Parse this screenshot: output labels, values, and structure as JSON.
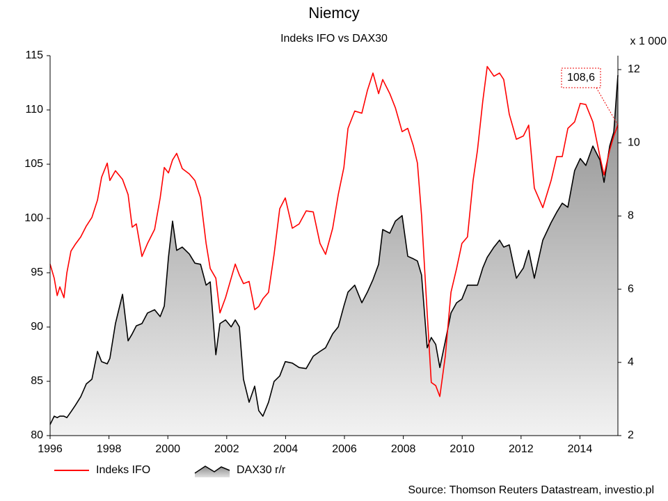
{
  "chart_data": {
    "type": "line",
    "title": "Niemcy",
    "subtitle": "Indeks IFO vs DAX30",
    "y2_unit": "x 1 000",
    "source": "Source: Thomson Reuters Datastream, investio.pl",
    "annotation": "108,6",
    "x": [
      1996.0,
      1996.14,
      1996.24,
      1996.33,
      1996.47,
      1996.57,
      1996.71,
      1996.85,
      1997.04,
      1997.23,
      1997.42,
      1997.61,
      1997.75,
      1997.94,
      1998.03,
      1998.22,
      1998.46,
      1998.65,
      1998.79,
      1998.93,
      1999.12,
      1999.31,
      1999.55,
      1999.74,
      1999.88,
      2000.02,
      2000.16,
      2000.3,
      2000.49,
      2000.73,
      2000.92,
      2001.11,
      2001.3,
      2001.44,
      2001.63,
      2001.77,
      2001.96,
      2002.15,
      2002.29,
      2002.43,
      2002.57,
      2002.76,
      2002.95,
      2003.09,
      2003.23,
      2003.42,
      2003.61,
      2003.8,
      2003.99,
      2004.23,
      2004.46,
      2004.7,
      2004.94,
      2005.17,
      2005.36,
      2005.6,
      2005.79,
      2005.98,
      2006.12,
      2006.35,
      2006.59,
      2006.78,
      2006.97,
      2007.16,
      2007.3,
      2007.54,
      2007.73,
      2007.96,
      2008.15,
      2008.34,
      2008.48,
      2008.62,
      2008.81,
      2008.95,
      2009.1,
      2009.24,
      2009.43,
      2009.62,
      2009.81,
      2009.99,
      2010.18,
      2010.37,
      2010.52,
      2010.7,
      2010.85,
      2011.08,
      2011.27,
      2011.41,
      2011.6,
      2011.84,
      2012.08,
      2012.26,
      2012.45,
      2012.74,
      2013.02,
      2013.21,
      2013.4,
      2013.59,
      2013.82,
      2014.01,
      2014.2,
      2014.44,
      2014.68,
      2014.82,
      2015.01,
      2015.15,
      2015.29
    ],
    "xlim": [
      1996,
      2015.29
    ],
    "xticks": [
      1996,
      1998,
      2000,
      2002,
      2004,
      2006,
      2008,
      2010,
      2012,
      2014
    ],
    "ylim": [
      80,
      115
    ],
    "yticks": [
      80,
      85,
      90,
      95,
      100,
      105,
      110,
      115
    ],
    "y2lim": [
      2,
      12.38
    ],
    "y2ticks": [
      2,
      4,
      6,
      8,
      10,
      12
    ],
    "legend": "bottom",
    "series": [
      {
        "name": "Indeks IFO",
        "color": "#ff0000",
        "values": [
          95.8,
          94.5,
          92.9,
          93.7,
          92.7,
          95,
          97,
          97.6,
          98.3,
          99.3,
          100.1,
          101.7,
          103.8,
          105.1,
          103.5,
          104.4,
          103.6,
          102.2,
          99.2,
          99.5,
          96.5,
          97.7,
          99,
          101.9,
          104.7,
          104.2,
          105.4,
          106,
          104.6,
          104.1,
          103.5,
          101.9,
          97.7,
          95.4,
          94.5,
          91.3,
          92.7,
          94.5,
          95.8,
          94.8,
          94,
          94.2,
          91.6,
          91.9,
          92.6,
          93.2,
          96.7,
          100.9,
          101.9,
          99.1,
          99.5,
          100.7,
          100.6,
          97.7,
          96.7,
          99.1,
          102.2,
          104.7,
          108.3,
          109.9,
          109.7,
          111.8,
          113.4,
          111.5,
          112.8,
          111.5,
          110.2,
          108,
          108.3,
          106.7,
          105.1,
          100.3,
          91.3,
          84.9,
          84.6,
          83.6,
          87.4,
          93.2,
          95.4,
          97.7,
          98.3,
          103.5,
          106.3,
          110.8,
          114,
          113.1,
          113.4,
          112.8,
          109.6,
          107.3,
          107.6,
          108.6,
          102.8,
          101,
          103.5,
          105.7,
          105.7,
          108.3,
          108.9,
          110.6,
          110.5,
          108.9,
          105.7,
          104,
          106.3,
          107.6,
          108.6
        ]
      },
      {
        "name": "DAX30 r/r",
        "color": "#000000",
        "axis": "y2",
        "values": [
          2.3,
          2.53,
          2.49,
          2.53,
          2.53,
          2.49,
          2.65,
          2.82,
          3.06,
          3.41,
          3.54,
          4.3,
          4.02,
          3.96,
          4.11,
          5.06,
          5.86,
          4.59,
          4.78,
          5,
          5.06,
          5.35,
          5.44,
          5.25,
          5.54,
          6.87,
          7.86,
          7.06,
          7.15,
          6.96,
          6.71,
          6.68,
          6.11,
          6.2,
          4.21,
          5.06,
          5.16,
          4.97,
          5.16,
          4.97,
          3.54,
          2.91,
          3.35,
          2.68,
          2.53,
          2.91,
          3.48,
          3.63,
          4.02,
          3.98,
          3.86,
          3.83,
          4.17,
          4.3,
          4.4,
          4.78,
          4.97,
          5.54,
          5.92,
          6.11,
          5.63,
          5.92,
          6.26,
          6.68,
          7.63,
          7.53,
          7.86,
          8.01,
          6.9,
          6.83,
          6.77,
          6.39,
          4.4,
          4.68,
          4.49,
          3.86,
          4.59,
          5.35,
          5.63,
          5.73,
          6.11,
          6.11,
          6.11,
          6.58,
          6.87,
          7.15,
          7.34,
          7.15,
          7.21,
          6.3,
          6.58,
          7.06,
          6.3,
          7.34,
          7.82,
          8.1,
          8.35,
          8.24,
          9.24,
          9.57,
          9.38,
          9.91,
          9.53,
          8.92,
          9.91,
          10.29,
          11.85
        ]
      }
    ]
  }
}
